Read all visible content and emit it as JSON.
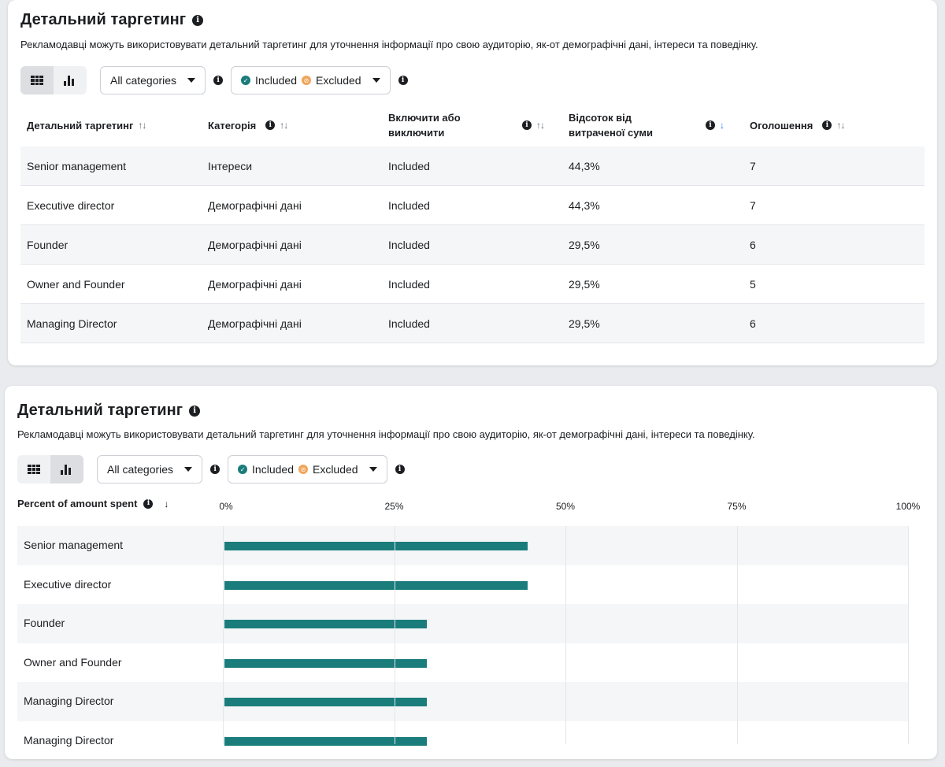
{
  "section_title": "Детальний таргетинг",
  "section_desc": "Рекламодавці можуть використовувати детальний таргетинг для уточнення інформації про свою аудиторію, як-от демографічні дані, інтереси та поведінку.",
  "filters": {
    "category": "All categories",
    "included": "Included",
    "excluded": "Excluded"
  },
  "table": {
    "headers": [
      "Детальний таргетинг",
      "Категорія",
      "Включити або виключити",
      "Відсоток від витраченої суми",
      "Оголошення"
    ],
    "header_lines": {
      "col3": [
        "Включити або",
        "виключити"
      ],
      "col4": [
        "Відсоток від",
        "витраченої суми"
      ]
    },
    "rows": [
      [
        "Senior management",
        "Інтереси",
        "Included",
        "44,3%",
        "7"
      ],
      [
        "Executive director",
        "Демографічні дані",
        "Included",
        "44,3%",
        "7"
      ],
      [
        "Founder",
        "Демографічні дані",
        "Included",
        "29,5%",
        "6"
      ],
      [
        "Owner and Founder",
        "Демографічні дані",
        "Included",
        "29,5%",
        "5"
      ],
      [
        "Managing Director",
        "Демографічні дані",
        "Included",
        "29,5%",
        "6"
      ]
    ]
  },
  "chart_data": {
    "type": "bar",
    "orientation": "horizontal",
    "ylabel": "Percent of amount spent",
    "xlim": [
      0,
      100
    ],
    "ticks": [
      "0%",
      "25%",
      "50%",
      "75%",
      "100%"
    ],
    "categories": [
      "Senior management",
      "Executive director",
      "Founder",
      "Owner and Founder",
      "Managing Director",
      "Managing Director"
    ],
    "values": [
      44.3,
      44.3,
      29.5,
      29.5,
      29.5,
      29.5
    ],
    "bar_color": "#1b7c7c",
    "grid": true
  },
  "colors": {
    "included": "#1b7c7c",
    "excluded": "#f0a55b",
    "sort_active": "#1877f2"
  }
}
